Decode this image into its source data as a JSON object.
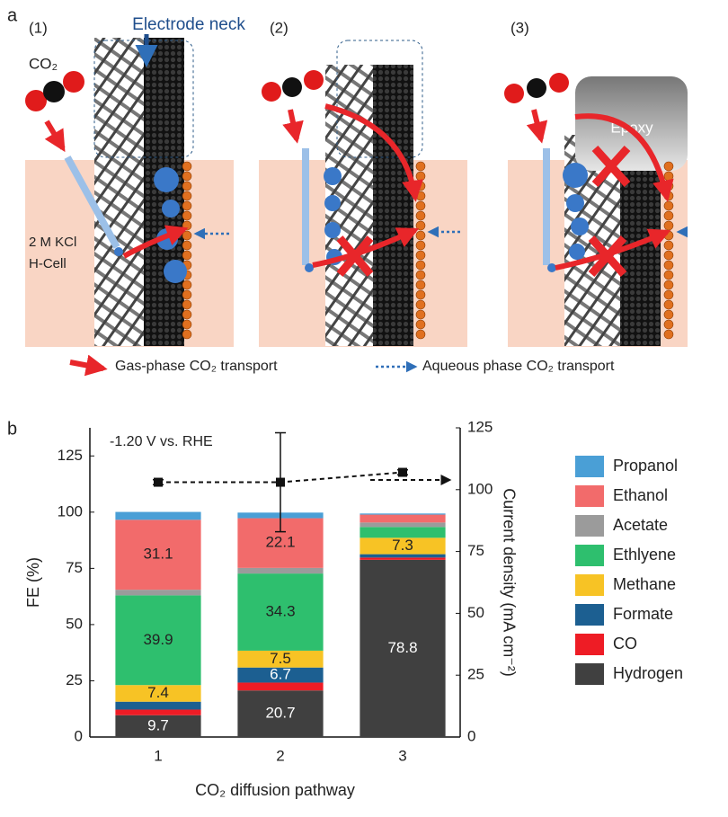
{
  "panel_a": {
    "label": "a",
    "steps": [
      "(1)",
      "(2)",
      "(3)"
    ],
    "electrode_neck": "Electrode neck",
    "co2": "CO₂",
    "electrolyte": [
      "2 M KCl",
      "H-Cell"
    ],
    "epoxy": "Epoxy",
    "legend": [
      "Gas-phase CO₂ transport",
      "Aqueous phase CO₂ transport"
    ]
  },
  "chart_data": {
    "type": "bar",
    "stacked": true,
    "panel_label": "b",
    "annotation": "-1.20 V vs. RHE",
    "xlabel": "CO₂ diffusion pathway",
    "ylabel": "FE (%)",
    "y2label": "Current density (mA cm⁻²)",
    "categories": [
      "1",
      "2",
      "3"
    ],
    "series": [
      {
        "name": "Hydrogen",
        "color": "#404040",
        "values": [
          9.7,
          20.7,
          78.8
        ]
      },
      {
        "name": "CO",
        "color": "#ee1c25",
        "values": [
          2.5,
          3.5,
          1
        ]
      },
      {
        "name": "Formate",
        "color": "#1c5f91",
        "values": [
          3.5,
          6.7,
          1.5
        ]
      },
      {
        "name": "Methane",
        "color": "#f7c325",
        "values": [
          7.4,
          7.5,
          7.3
        ]
      },
      {
        "name": "Ethlyene",
        "color": "#2ebf6e",
        "values": [
          39.9,
          34.3,
          4.8
        ]
      },
      {
        "name": "Acetate",
        "color": "#9b9b9b",
        "values": [
          2.5,
          2.5,
          2
        ]
      },
      {
        "name": "Ethanol",
        "color": "#f26b6b",
        "values": [
          31.1,
          22.1,
          3.5
        ]
      },
      {
        "name": "Propanol",
        "color": "#4a9fd6",
        "values": [
          3.5,
          2.5,
          0.5
        ]
      },
      {
        "type": "line",
        "axis": "y2",
        "color": "#111111",
        "values": [
          103,
          103,
          107
        ],
        "errors": [
          1,
          20,
          1
        ]
      }
    ],
    "ylim": [
      0,
      137.5
    ],
    "yticks": [
      0,
      25,
      50,
      75,
      100,
      125
    ],
    "y2lim": [
      0,
      125
    ],
    "y2ticks": [
      0,
      25,
      50,
      75,
      100,
      125
    ],
    "grid": false,
    "legend": "right"
  }
}
